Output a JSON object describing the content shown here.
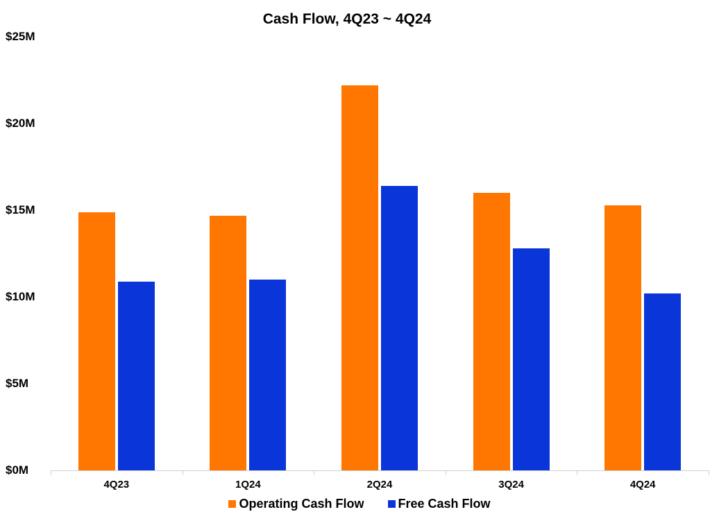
{
  "chart_data": {
    "type": "bar",
    "title": "Cash Flow, 4Q23 ~ 4Q24",
    "xlabel": "",
    "ylabel": "",
    "categories": [
      "4Q23",
      "1Q24",
      "2Q24",
      "3Q24",
      "4Q24"
    ],
    "series": [
      {
        "name": "Operating Cash Flow",
        "color": "#ff7700",
        "values": [
          14.9,
          14.7,
          22.2,
          16.0,
          15.3
        ]
      },
      {
        "name": "Free Cash Flow",
        "color": "#0a35d9",
        "values": [
          10.9,
          11.0,
          16.4,
          12.8,
          10.2
        ]
      }
    ],
    "yticks": [
      "$0M",
      "$5M",
      "$10M",
      "$15M",
      "$20M",
      "$25M"
    ],
    "ylim": [
      0,
      25
    ],
    "unit": "$M",
    "grid": false,
    "legend_position": "bottom"
  }
}
